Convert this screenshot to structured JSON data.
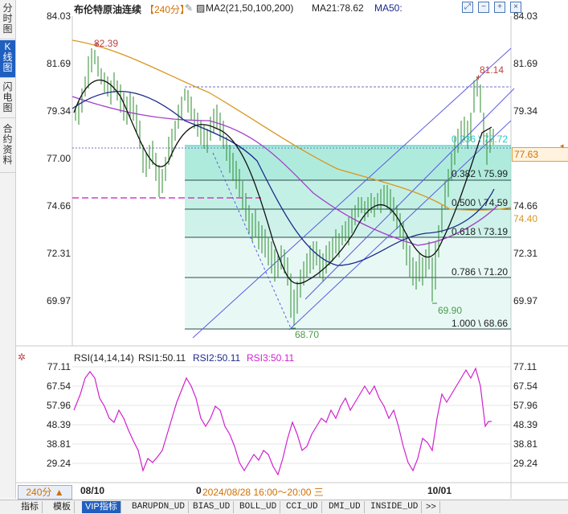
{
  "left_tabs": [
    {
      "label": "分时图",
      "active": false
    },
    {
      "label": "K线图",
      "active": true
    },
    {
      "label": "闪电图",
      "active": false
    },
    {
      "label": "合约资料",
      "active": false
    }
  ],
  "header": {
    "title": "布伦特原油连续",
    "period": "【240分】",
    "ma2": "MA2(21,50,100,200)",
    "ma21": "MA21:78.62",
    "ma50": "MA50:"
  },
  "price_axis": {
    "left_labels": [
      "84.03",
      "81.69",
      "79.34",
      "77.00",
      "74.66",
      "72.31",
      "69.97"
    ],
    "right_labels": [
      "84.03",
      "81.69",
      "79.34",
      "77.00",
      "74.66",
      "72.31",
      "69.97"
    ],
    "current_price": "77.63",
    "ma_price_tag": "74.40"
  },
  "annotations": {
    "high_left": "82.39",
    "high_right": "81.14",
    "low_left": "68.70",
    "low_right": "69.90"
  },
  "fib_levels": [
    {
      "label": "0.236 \\ 77.72"
    },
    {
      "label": "0.382 \\ 75.99"
    },
    {
      "label": "0.500 \\ 74.59"
    },
    {
      "label": "0.618 \\ 73.19"
    },
    {
      "label": "0.786 \\ 71.20"
    },
    {
      "label": "1.000 \\ 68.66"
    }
  ],
  "rsi": {
    "title": "RSI(14,14,14)",
    "rsi1": "RSI1:50.11",
    "rsi2": "RSI2:50.11",
    "rsi3": "RSI3:50.11",
    "left_labels": [
      "77.11",
      "67.54",
      "57.96",
      "48.39",
      "38.81",
      "29.24"
    ],
    "right_labels": [
      "77.11",
      "67.54",
      "57.96",
      "48.39",
      "38.81",
      "29.24"
    ]
  },
  "time_axis": {
    "period_button": "240分 ▲",
    "label_1": "08/10",
    "label_2": "0",
    "crosshair_time": "2024/08/28 16:00～20:00 三",
    "label_3": "10/01"
  },
  "bottom_tabs": [
    "指标",
    "模板",
    "VIP指标",
    "BARUPDN_UD",
    "BIAS_UD",
    "BOLL_UD",
    "CCI_UD",
    "DMI_UD",
    "INSIDE_UD",
    ">>"
  ],
  "bottom_active": "VIP指标",
  "colors": {
    "up": "#2e8b2e",
    "ma_orange": "#d9961f",
    "ma_purple": "#a040c8",
    "ma_black": "#111111",
    "ma_navy": "#1a2a8a",
    "fib_fill": "#7fe0c8",
    "rsi_line": "#d020d0",
    "channel": "#5a5ae0"
  },
  "icons": [
    "expand-icon",
    "minus-icon",
    "plus-icon",
    "close-icon",
    "settings-gear-icon"
  ]
}
